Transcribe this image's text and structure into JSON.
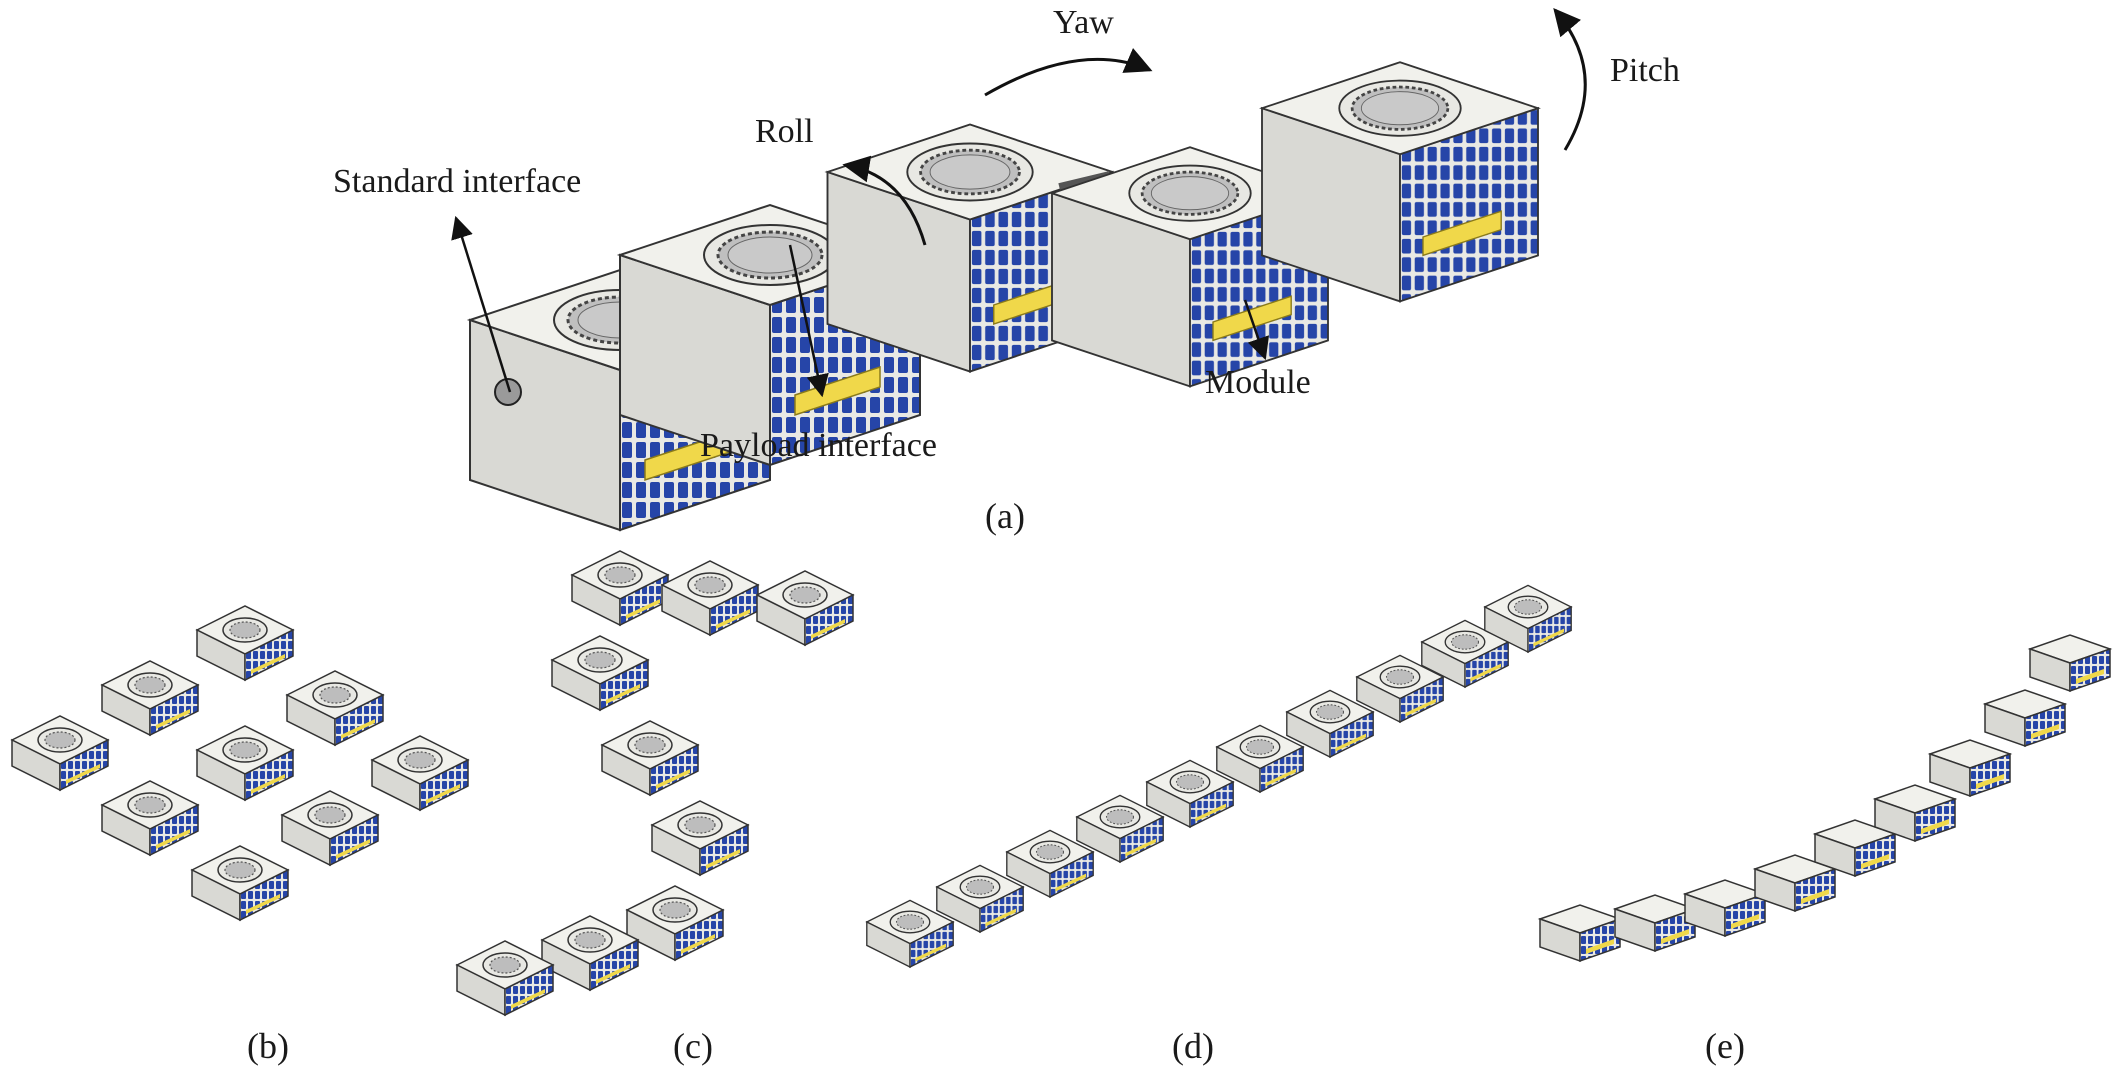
{
  "labels": {
    "yaw": "Yaw",
    "pitch": "Pitch",
    "roll": "Roll",
    "standard_interface": "Standard interface",
    "payload_interface": "Payload interface",
    "module": "Module"
  },
  "captions": {
    "a": "(a)",
    "b": "(b)",
    "c": "(c)",
    "d": "(d)",
    "e": "(e)"
  },
  "colors": {
    "body": "#e4e4df",
    "top": "#f3f3ef",
    "side": "#cfcfca",
    "panel": "#1f3f9e",
    "payload": "#f0d84a",
    "outline": "#2a2a2a"
  },
  "icons": {
    "module": "cube-module-icon",
    "port": "docking-port-icon"
  }
}
